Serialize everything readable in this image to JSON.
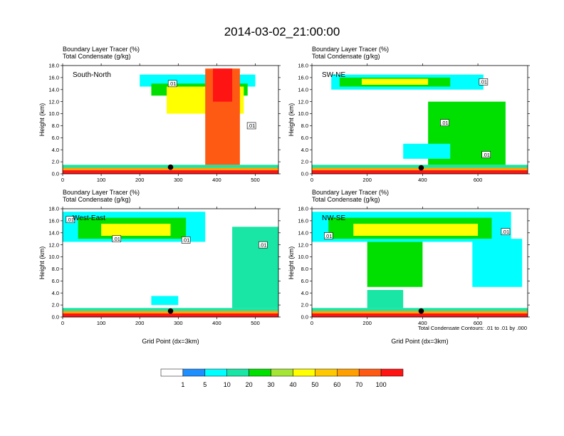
{
  "title": "2014-03-02_21:00:00",
  "colors": {
    "levels": [
      "#ffffff",
      "#1f8fff",
      "#00ffff",
      "#19e5a5",
      "#00e000",
      "#a5e535",
      "#ffff00",
      "#ffc800",
      "#ffa000",
      "#ff5a14",
      "#ff1414"
    ],
    "contour": "#000000",
    "marker": "#000000"
  },
  "colorbar": {
    "labels": [
      "1",
      "5",
      "10",
      "20",
      "30",
      "40",
      "50",
      "60",
      "70",
      "100"
    ]
  },
  "footnote": "Total Condensate Contours: .01 to .01 by .000",
  "chart_data": [
    {
      "type": "heatmap",
      "title": "South-North",
      "header_line1": "Boundary Layer Tracer    (%)",
      "header_line2": "Total Condensate    (g/kg)",
      "ylabel": "Height (km)",
      "xlabel": "",
      "ylim": [
        0,
        18
      ],
      "yticks": [
        "0.0",
        "2.0",
        "4.0",
        "6.0",
        "8.0",
        "10.0",
        "12.0",
        "14.0",
        "16.0",
        "18.0"
      ],
      "xlim": [
        0,
        560
      ],
      "xticks": [
        "0",
        "100",
        "200",
        "300",
        "400",
        "500"
      ],
      "contour_labels": [
        {
          "text": ".01",
          "x": 285,
          "y": 15.0
        },
        {
          "text": ".01",
          "x": 490,
          "y": 8.0
        }
      ],
      "marker": {
        "x": 280,
        "y": 1.1
      },
      "cells": [
        {
          "x": [
            0,
            560
          ],
          "y": [
            0,
            0.6
          ],
          "level": 10
        },
        {
          "x": [
            0,
            560
          ],
          "y": [
            0.6,
            1.0
          ],
          "level": 8
        },
        {
          "x": [
            0,
            560
          ],
          "y": [
            1.0,
            1.5
          ],
          "level": 3
        },
        {
          "x": [
            200,
            500
          ],
          "y": [
            14.5,
            16.5
          ],
          "level": 2
        },
        {
          "x": [
            230,
            480
          ],
          "y": [
            13.0,
            15.0
          ],
          "level": 4
        },
        {
          "x": [
            270,
            470
          ],
          "y": [
            10.0,
            14.5
          ],
          "level": 6
        },
        {
          "x": [
            370,
            460
          ],
          "y": [
            1.5,
            17.5
          ],
          "level": 9
        },
        {
          "x": [
            390,
            440
          ],
          "y": [
            12.0,
            17.5
          ],
          "level": 10
        }
      ]
    },
    {
      "type": "heatmap",
      "title": "SW-NE",
      "header_line1": "Boundary Layer Tracer    (%)",
      "header_line2": "Total Condensate    (g/kg)",
      "ylabel": "Height (km)",
      "xlabel": "",
      "ylim": [
        0,
        18
      ],
      "yticks": [
        "0.0",
        "2.0",
        "4.0",
        "6.0",
        "8.0",
        "10.0",
        "12.0",
        "14.0",
        "16.0",
        "18.0"
      ],
      "xlim": [
        0,
        780
      ],
      "xticks": [
        "0",
        "200",
        "400",
        "600"
      ],
      "contour_labels": [
        {
          "text": ".01",
          "x": 620,
          "y": 15.3
        },
        {
          "text": ".01",
          "x": 480,
          "y": 8.5
        },
        {
          "text": ".01",
          "x": 630,
          "y": 3.2
        }
      ],
      "marker": {
        "x": 395,
        "y": 1.0
      },
      "cells": [
        {
          "x": [
            0,
            780
          ],
          "y": [
            0,
            0.6
          ],
          "level": 10
        },
        {
          "x": [
            0,
            780
          ],
          "y": [
            0.6,
            1.0
          ],
          "level": 8
        },
        {
          "x": [
            0,
            780
          ],
          "y": [
            1.0,
            1.5
          ],
          "level": 3
        },
        {
          "x": [
            70,
            620
          ],
          "y": [
            14.0,
            16.5
          ],
          "level": 2
        },
        {
          "x": [
            100,
            500
          ],
          "y": [
            14.5,
            16.0
          ],
          "level": 4
        },
        {
          "x": [
            180,
            420
          ],
          "y": [
            14.8,
            15.8
          ],
          "level": 6
        },
        {
          "x": [
            420,
            700
          ],
          "y": [
            1.5,
            12.0
          ],
          "level": 4
        },
        {
          "x": [
            330,
            500
          ],
          "y": [
            2.5,
            5.0
          ],
          "level": 2
        }
      ]
    },
    {
      "type": "heatmap",
      "title": "West-East",
      "header_line1": "Boundary Layer Tracer    (%)",
      "header_line2": "Total Condensate    (g/kg)",
      "ylabel": "Height (km)",
      "xlabel": "Grid Point (dx=3km)",
      "ylim": [
        0,
        18
      ],
      "yticks": [
        "0.0",
        "2.0",
        "4.0",
        "6.0",
        "8.0",
        "10.0",
        "12.0",
        "14.0",
        "16.0",
        "18.0"
      ],
      "xlim": [
        0,
        560
      ],
      "xticks": [
        "0",
        "100",
        "200",
        "300",
        "400",
        "500"
      ],
      "contour_labels": [
        {
          "text": ".01",
          "x": 20,
          "y": 16.2
        },
        {
          "text": ".01",
          "x": 140,
          "y": 13.0
        },
        {
          "text": ".01",
          "x": 320,
          "y": 12.8
        },
        {
          "text": ".01",
          "x": 520,
          "y": 12.0
        }
      ],
      "marker": {
        "x": 280,
        "y": 1.0
      },
      "cells": [
        {
          "x": [
            0,
            560
          ],
          "y": [
            0,
            0.6
          ],
          "level": 10
        },
        {
          "x": [
            0,
            560
          ],
          "y": [
            0.6,
            1.0
          ],
          "level": 8
        },
        {
          "x": [
            0,
            560
          ],
          "y": [
            1.0,
            1.5
          ],
          "level": 3
        },
        {
          "x": [
            0,
            370
          ],
          "y": [
            12.5,
            17.5
          ],
          "level": 2
        },
        {
          "x": [
            40,
            320
          ],
          "y": [
            13.0,
            16.5
          ],
          "level": 4
        },
        {
          "x": [
            100,
            280
          ],
          "y": [
            13.5,
            15.5
          ],
          "level": 6
        },
        {
          "x": [
            230,
            300
          ],
          "y": [
            2.0,
            3.5
          ],
          "level": 2
        },
        {
          "x": [
            440,
            560
          ],
          "y": [
            1.5,
            15.0
          ],
          "level": 3
        }
      ]
    },
    {
      "type": "heatmap",
      "title": "NW-SE",
      "header_line1": "Boundary Layer Tracer    (%)",
      "header_line2": "Total Condensate    (g/kg)",
      "ylabel": "Height (km)",
      "xlabel": "Grid Point (dx=3km)",
      "ylim": [
        0,
        18
      ],
      "yticks": [
        "0.0",
        "2.0",
        "4.0",
        "6.0",
        "8.0",
        "10.0",
        "12.0",
        "14.0",
        "16.0",
        "18.0"
      ],
      "xlim": [
        0,
        780
      ],
      "xticks": [
        "0",
        "200",
        "400",
        "600"
      ],
      "contour_labels": [
        {
          "text": ".01",
          "x": 60,
          "y": 13.5
        },
        {
          "text": ".01",
          "x": 700,
          "y": 14.2
        }
      ],
      "marker": {
        "x": 395,
        "y": 1.0
      },
      "cells": [
        {
          "x": [
            0,
            780
          ],
          "y": [
            0,
            0.6
          ],
          "level": 10
        },
        {
          "x": [
            0,
            780
          ],
          "y": [
            0.6,
            1.0
          ],
          "level": 8
        },
        {
          "x": [
            0,
            780
          ],
          "y": [
            1.0,
            1.5
          ],
          "level": 3
        },
        {
          "x": [
            0,
            720
          ],
          "y": [
            12.5,
            17.5
          ],
          "level": 2
        },
        {
          "x": [
            60,
            650
          ],
          "y": [
            13.0,
            16.5
          ],
          "level": 4
        },
        {
          "x": [
            150,
            600
          ],
          "y": [
            13.5,
            15.5
          ],
          "level": 6
        },
        {
          "x": [
            200,
            400
          ],
          "y": [
            5.0,
            12.5
          ],
          "level": 4
        },
        {
          "x": [
            580,
            760
          ],
          "y": [
            5.0,
            13.0
          ],
          "level": 2
        },
        {
          "x": [
            200,
            330
          ],
          "y": [
            1.5,
            4.5
          ],
          "level": 3
        }
      ]
    }
  ]
}
